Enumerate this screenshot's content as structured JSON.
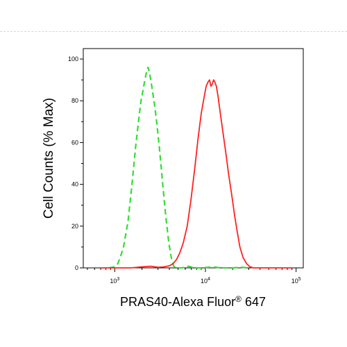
{
  "chart_data": {
    "type": "line",
    "xlabel": "PRAS40-Alexa Fluor® 647",
    "ylabel": "Cell Counts (% Max)",
    "x_scale": "log",
    "xlim": [
      450,
      120000
    ],
    "ylim": [
      0,
      105
    ],
    "x_ticks": [
      {
        "value": 1000,
        "base": "10",
        "exp": "3"
      },
      {
        "value": 10000,
        "base": "10",
        "exp": "4"
      },
      {
        "value": 100000,
        "base": "10",
        "exp": "5"
      }
    ],
    "y_ticks": [
      {
        "value": 0,
        "label": "0"
      },
      {
        "value": 20,
        "label": "20"
      },
      {
        "value": 40,
        "label": "40"
      },
      {
        "value": 60,
        "label": "60"
      },
      {
        "value": 80,
        "label": "80"
      },
      {
        "value": 100,
        "label": "100"
      }
    ],
    "grid": false,
    "legend": "none",
    "series": [
      {
        "style": "dashed",
        "color": "#33dd33",
        "points": [
          [
            870,
            0
          ],
          [
            1000,
            0.5
          ],
          [
            1080,
            2
          ],
          [
            1150,
            5
          ],
          [
            1250,
            10
          ],
          [
            1400,
            22
          ],
          [
            1550,
            40
          ],
          [
            1700,
            58
          ],
          [
            1850,
            72
          ],
          [
            1950,
            80
          ],
          [
            2050,
            85
          ],
          [
            2150,
            90
          ],
          [
            2250,
            94
          ],
          [
            2330,
            96
          ],
          [
            2400,
            94
          ],
          [
            2500,
            90
          ],
          [
            2600,
            85
          ],
          [
            2750,
            78
          ],
          [
            2900,
            70
          ],
          [
            3100,
            58
          ],
          [
            3350,
            42
          ],
          [
            3650,
            25
          ],
          [
            3950,
            12
          ],
          [
            4200,
            5
          ],
          [
            4450,
            1
          ],
          [
            4700,
            0
          ],
          [
            5500,
            0
          ],
          [
            6500,
            0.8
          ],
          [
            7500,
            0
          ],
          [
            9000,
            0
          ],
          [
            12000,
            0.5
          ],
          [
            15000,
            0
          ],
          [
            20000,
            0
          ],
          [
            25000,
            0.3
          ],
          [
            30000,
            0
          ]
        ]
      },
      {
        "style": "solid",
        "color": "#ff2020",
        "points": [
          [
            700,
            0
          ],
          [
            1500,
            0
          ],
          [
            2000,
            0.5
          ],
          [
            2500,
            0.8
          ],
          [
            3000,
            0.3
          ],
          [
            3500,
            0.5
          ],
          [
            4000,
            1
          ],
          [
            4400,
            2
          ],
          [
            4800,
            4
          ],
          [
            5200,
            7
          ],
          [
            5700,
            12
          ],
          [
            6300,
            20
          ],
          [
            6900,
            32
          ],
          [
            7600,
            47
          ],
          [
            8300,
            62
          ],
          [
            9000,
            74
          ],
          [
            9700,
            82
          ],
          [
            10200,
            87
          ],
          [
            10700,
            89
          ],
          [
            11100,
            90
          ],
          [
            11500,
            87
          ],
          [
            11900,
            88
          ],
          [
            12300,
            90
          ],
          [
            12700,
            89
          ],
          [
            13200,
            87
          ],
          [
            13800,
            82
          ],
          [
            14600,
            74
          ],
          [
            15600,
            65
          ],
          [
            16800,
            55
          ],
          [
            18000,
            45
          ],
          [
            19500,
            35
          ],
          [
            21000,
            25
          ],
          [
            22500,
            17
          ],
          [
            24000,
            10
          ],
          [
            26000,
            5
          ],
          [
            28500,
            2
          ],
          [
            31000,
            0.5
          ],
          [
            34000,
            0
          ],
          [
            60000,
            0
          ],
          [
            90000,
            0
          ]
        ]
      }
    ]
  }
}
